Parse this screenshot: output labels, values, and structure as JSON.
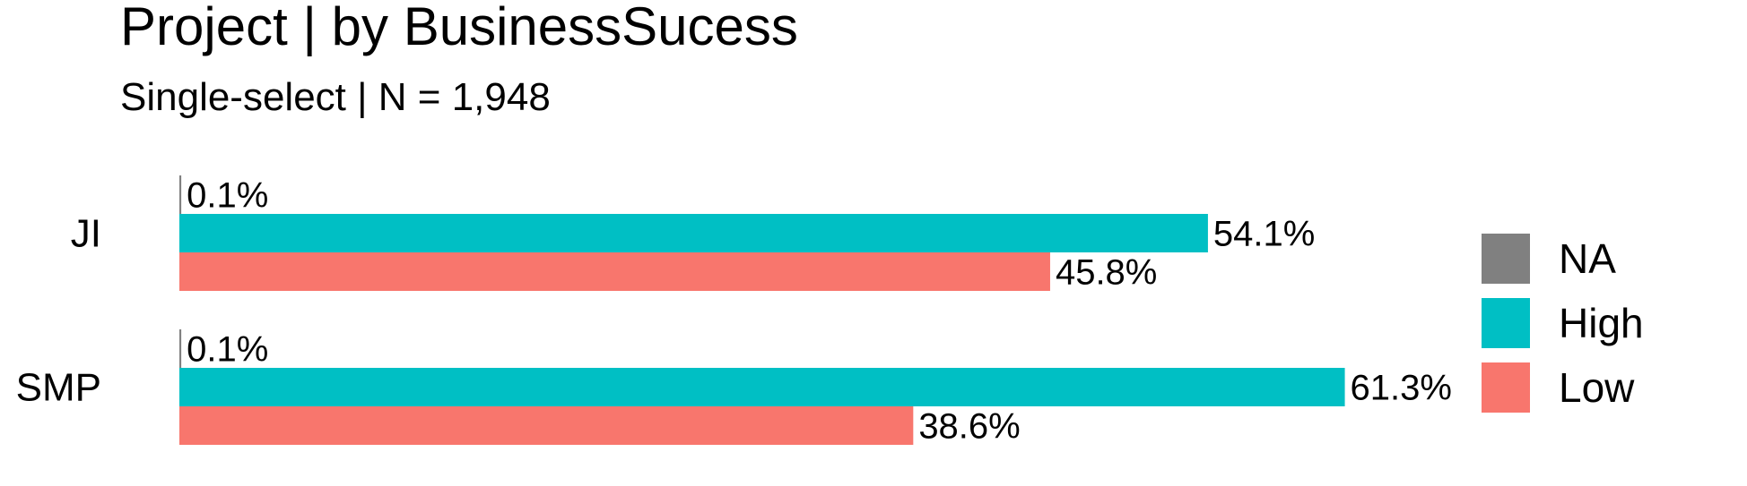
{
  "chart_data": {
    "type": "bar",
    "orientation": "horizontal",
    "title": "Project | by BusinessSucess",
    "subtitle": "Single-select | N = 1,948",
    "categories": [
      "JI",
      "SMP"
    ],
    "series": [
      {
        "name": "NA",
        "color": "#808080",
        "values": [
          0.1,
          0.1
        ],
        "labels": [
          "0.1%",
          "0.1%"
        ]
      },
      {
        "name": "High",
        "color": "#00BFC4",
        "values": [
          54.1,
          61.3
        ],
        "labels": [
          "54.1%",
          "61.3%"
        ]
      },
      {
        "name": "Low",
        "color": "#F8766D",
        "values": [
          45.8,
          38.6
        ],
        "labels": [
          "45.8%",
          "38.6%"
        ]
      }
    ],
    "xlabel": "",
    "ylabel": "",
    "xlim": [
      0,
      61.3
    ],
    "grid": false,
    "legend_position": "right"
  }
}
